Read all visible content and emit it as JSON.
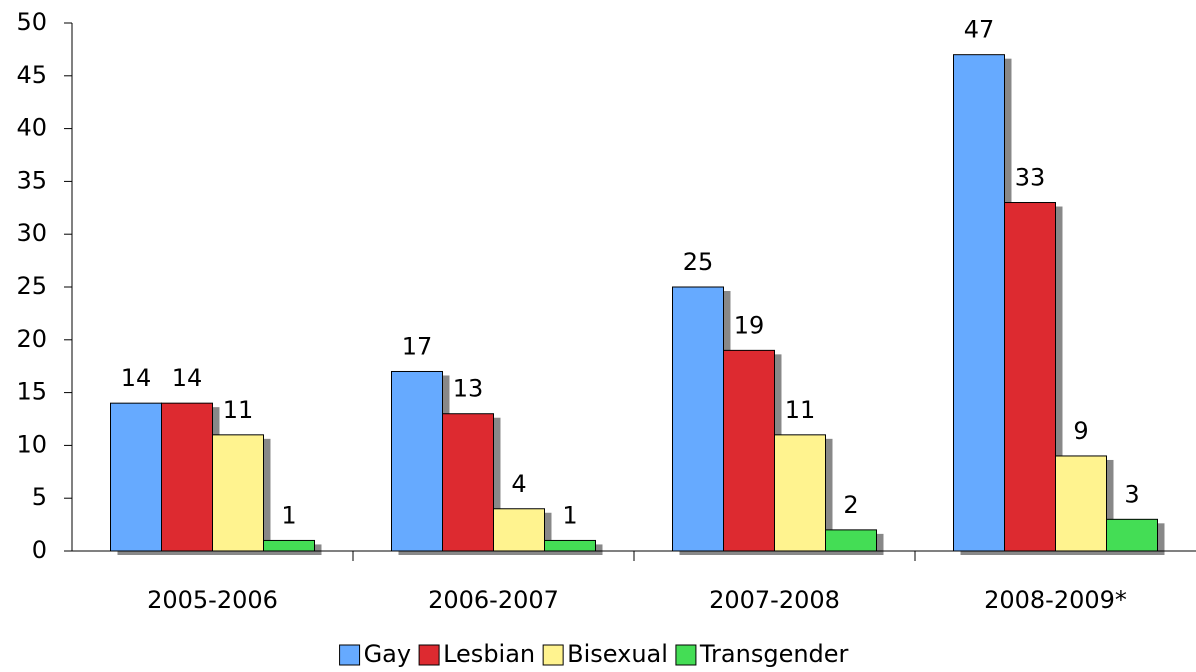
{
  "chart_data": {
    "type": "bar",
    "categories": [
      "2005-2006",
      "2006-2007",
      "2007-2008",
      "2008-2009*"
    ],
    "series": [
      {
        "name": "Gay",
        "color": "#66aaff",
        "values": [
          14,
          17,
          25,
          47
        ]
      },
      {
        "name": "Lesbian",
        "color": "#dd2a30",
        "values": [
          14,
          13,
          19,
          33
        ]
      },
      {
        "name": "Bisexual",
        "color": "#fff38f",
        "values": [
          11,
          4,
          11,
          9
        ]
      },
      {
        "name": "Transgender",
        "color": "#44dd55",
        "values": [
          1,
          1,
          2,
          3
        ]
      }
    ],
    "ylim": [
      0,
      50
    ],
    "yticks": [
      0,
      5,
      10,
      15,
      20,
      25,
      30,
      35,
      40,
      45,
      50
    ],
    "grid": false,
    "legend": "bottom"
  }
}
